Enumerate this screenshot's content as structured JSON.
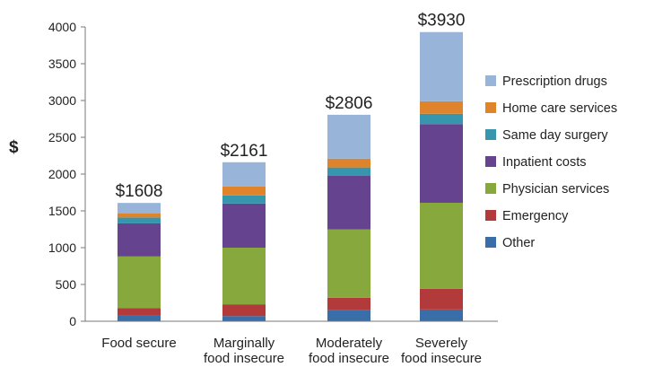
{
  "chart_data": {
    "type": "bar",
    "stacked": true,
    "title": "",
    "xlabel": "",
    "ylabel": "$",
    "ylim": [
      0,
      4000
    ],
    "yticks": [
      "0",
      "500",
      "1000",
      "1500",
      "2000",
      "2500",
      "3000",
      "3500",
      "4000"
    ],
    "grid": false,
    "legend_position": "right",
    "categories": [
      [
        "Food secure"
      ],
      [
        "Marginally",
        "food insecure"
      ],
      [
        "Moderately",
        "food insecure"
      ],
      [
        "Severely",
        "food insecure"
      ]
    ],
    "totals": [
      "$1608",
      "$2161",
      "$2806",
      "$3930"
    ],
    "series": [
      {
        "name": "Other",
        "color": "#3a6ea8",
        "values": [
          80,
          70,
          150,
          160
        ]
      },
      {
        "name": "Emergency",
        "color": "#b23a3a",
        "values": [
          100,
          160,
          170,
          280
        ]
      },
      {
        "name": "Physician services",
        "color": "#86a83c",
        "values": [
          700,
          770,
          930,
          1170
        ]
      },
      {
        "name": "Inpatient costs",
        "color": "#66438f",
        "values": [
          450,
          600,
          730,
          1070
        ]
      },
      {
        "name": "Same day surgery",
        "color": "#3596ad",
        "values": [
          80,
          110,
          110,
          140
        ]
      },
      {
        "name": "Home care services",
        "color": "#e0842c",
        "values": [
          58,
          120,
          120,
          170
        ]
      },
      {
        "name": "Prescription drugs",
        "color": "#98b4d8",
        "values": [
          140,
          331,
          596,
          940
        ]
      }
    ]
  }
}
